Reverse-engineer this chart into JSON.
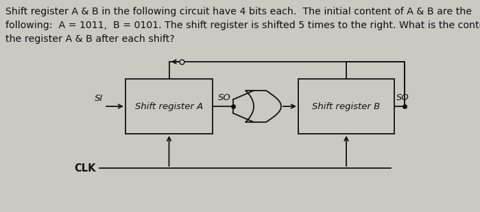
{
  "bg_color": "#ccc8c2",
  "text_color": "#111111",
  "line1": "Shift register A & B in the following circuit have 4 bits each.  The initial content of A & B are the",
  "line2": "following:  A = 1011,  B = 0101. The shift register is shifted 5 times to the right. What is the content of",
  "line3": "the register A & B after each shift?",
  "title_fontsize": 10.2,
  "reg_A_label": "Shift register A",
  "reg_B_label": "Shift register B",
  "SI_label": "SI",
  "SO_label_A": "SO",
  "SO_label_B": "SO",
  "CLK_label": "CLK",
  "line_color": "#111111",
  "line_width": 1.3,
  "note_fontsize": 9.0,
  "clk_fontsize": 10.5
}
